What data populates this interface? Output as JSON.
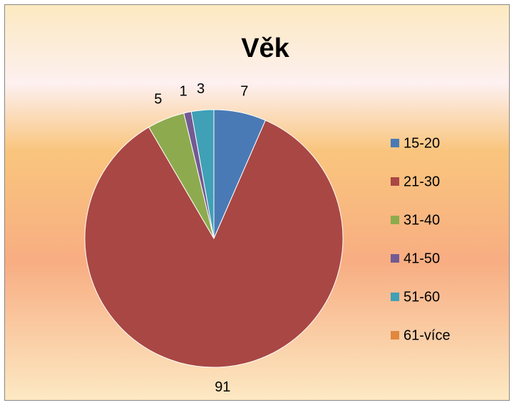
{
  "chart_data": {
    "type": "pie",
    "title": "Věk",
    "categories": [
      "15-20",
      "21-30",
      "31-40",
      "41-50",
      "51-60",
      "61-více"
    ],
    "values": [
      7,
      91,
      5,
      1,
      3,
      null
    ],
    "colors": [
      "#4a7ab5",
      "#a94744",
      "#8dab4e",
      "#735a93",
      "#3fa0b6",
      "#e0883f"
    ],
    "legend": "right"
  }
}
